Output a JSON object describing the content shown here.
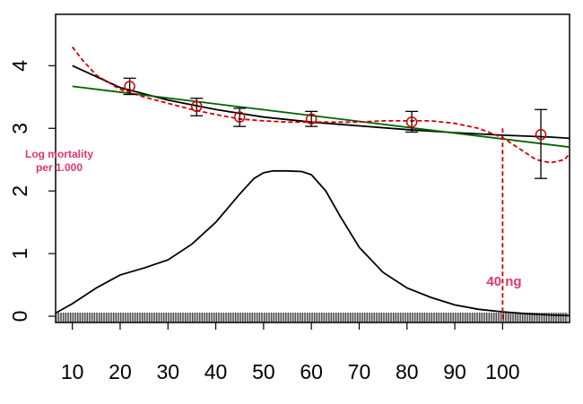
{
  "chart_data": {
    "type": "line",
    "title": "",
    "xlabel": "",
    "ylabel": "Log mortality per 1.000",
    "ylabel_lines": [
      "Log mortality",
      "per 1.000"
    ],
    "xlim": [
      6.5,
      114
    ],
    "ylim": [
      -0.1,
      4.82
    ],
    "x_ticks": [
      10,
      20,
      30,
      40,
      50,
      60,
      70,
      80,
      90,
      100
    ],
    "x_tick_labels": [
      "10",
      "20",
      "30",
      "40",
      "50",
      "60",
      "70",
      "80",
      "90",
      "100"
    ],
    "y_ticks": [
      0,
      1,
      2,
      3,
      4
    ],
    "y_tick_labels": [
      "0",
      "1",
      "2",
      "3",
      "4"
    ],
    "grid": false,
    "colors": {
      "spline": "#cc0000",
      "linear": "#006400",
      "smooth": "#000000",
      "points": "#cc0000",
      "annotation": "#e3346f"
    },
    "series": [
      {
        "name": "black smooth fit",
        "style": "solid",
        "color": "#000000",
        "x": [
          10,
          20,
          30,
          40,
          50,
          60,
          70,
          80,
          90,
          100,
          110,
          114
        ],
        "y": [
          4.0,
          3.65,
          3.45,
          3.3,
          3.18,
          3.1,
          3.04,
          2.98,
          2.93,
          2.89,
          2.86,
          2.84
        ]
      },
      {
        "name": "green linear fit",
        "style": "solid",
        "color": "#006400",
        "x": [
          10,
          114
        ],
        "y": [
          3.67,
          2.7
        ]
      },
      {
        "name": "red dashed spline",
        "style": "dashed",
        "color": "#cc0000",
        "x": [
          10,
          12,
          15,
          20,
          25,
          30,
          35,
          40,
          45,
          50,
          55,
          60,
          65,
          70,
          75,
          80,
          85,
          90,
          95,
          100,
          104,
          107,
          110,
          113,
          114
        ],
        "y": [
          4.3,
          4.1,
          3.85,
          3.62,
          3.5,
          3.4,
          3.3,
          3.22,
          3.15,
          3.12,
          3.1,
          3.1,
          3.1,
          3.1,
          3.12,
          3.12,
          3.12,
          3.08,
          3.0,
          2.85,
          2.65,
          2.5,
          2.45,
          2.5,
          2.6
        ]
      },
      {
        "name": "exposure density",
        "style": "solid",
        "color": "#000000",
        "x": [
          6.5,
          10,
          15,
          20,
          25,
          30,
          35,
          40,
          45,
          48,
          50,
          52,
          55,
          58,
          60,
          63,
          66,
          70,
          75,
          80,
          85,
          90,
          95,
          100,
          105,
          110,
          114
        ],
        "y": [
          0.05,
          0.2,
          0.45,
          0.66,
          0.77,
          0.9,
          1.15,
          1.5,
          1.95,
          2.2,
          2.29,
          2.32,
          2.32,
          2.31,
          2.26,
          2.0,
          1.6,
          1.1,
          0.7,
          0.45,
          0.3,
          0.18,
          0.11,
          0.07,
          0.04,
          0.02,
          0.01
        ]
      }
    ],
    "points": [
      {
        "x": 22,
        "y": 3.67,
        "lo": 3.54,
        "hi": 3.8
      },
      {
        "x": 36,
        "y": 3.35,
        "lo": 3.2,
        "hi": 3.48
      },
      {
        "x": 45,
        "y": 3.18,
        "lo": 3.03,
        "hi": 3.32
      },
      {
        "x": 60,
        "y": 3.15,
        "lo": 3.03,
        "hi": 3.27
      },
      {
        "x": 81,
        "y": 3.1,
        "lo": 2.94,
        "hi": 3.27
      },
      {
        "x": 108,
        "y": 2.9,
        "lo": 2.2,
        "hi": 3.3
      }
    ],
    "threshold": {
      "x": 100,
      "y_top": 3.0,
      "label": "40 ng"
    }
  }
}
